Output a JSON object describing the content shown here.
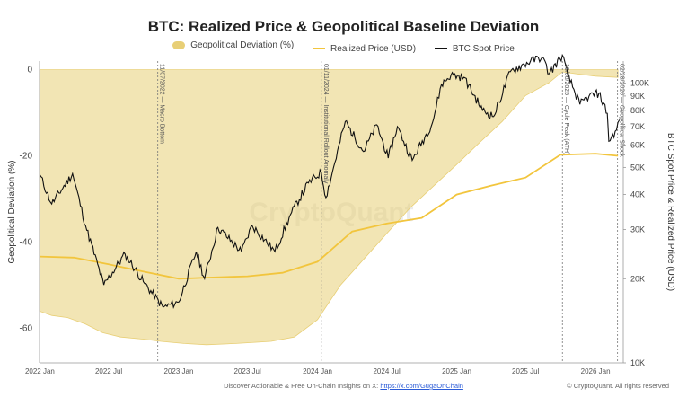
{
  "chart_data": {
    "type": "line",
    "title": "BTC: Realized Price & Geopolitical Baseline Deviation",
    "ylabel_left": "Geopolitical Deviation (%)",
    "ylabel_right": "BTC Spot Price & Realized Price (USD)",
    "ylim_left": [
      -68,
      2
    ],
    "ylim_right": [
      10000,
      120000
    ],
    "right_scale": "log",
    "legend_position": "top-center",
    "x_ticks": [
      "2022 Jan",
      "2022 Jul",
      "2023 Jan",
      "2023 Jul",
      "2024 Jan",
      "2024 Jul",
      "2025 Jan",
      "2025 Jul",
      "2026 Jan"
    ],
    "y_ticks_left": [
      0,
      -20,
      -40,
      -60
    ],
    "y_ticks_right": [
      {
        "value": 100000,
        "label": "100K"
      },
      {
        "value": 90000,
        "label": "90K"
      },
      {
        "value": 80000,
        "label": "80K"
      },
      {
        "value": 70000,
        "label": "70K"
      },
      {
        "value": 60000,
        "label": "60K"
      },
      {
        "value": 50000,
        "label": "50K"
      },
      {
        "value": 40000,
        "label": "40K"
      },
      {
        "value": 30000,
        "label": "30K"
      },
      {
        "value": 20000,
        "label": "20K"
      },
      {
        "value": 10000,
        "label": "10K"
      }
    ],
    "grid": false,
    "watermark": "CryptoQuant",
    "series": [
      {
        "name": "Geopolitical Deviation (%)",
        "type": "area",
        "color": "#e8cf76",
        "x": [
          "2021-12-31",
          "2022-02-01",
          "2022-03-15",
          "2022-05-01",
          "2022-06-15",
          "2022-08-01",
          "2022-10-01",
          "2022-11-15",
          "2023-01-15",
          "2023-03-15",
          "2023-06-01",
          "2023-09-01",
          "2023-11-01",
          "2024-01-01",
          "2024-03-01",
          "2024-05-01",
          "2024-07-01",
          "2024-09-01",
          "2024-11-01",
          "2025-01-01",
          "2025-03-01",
          "2025-05-01",
          "2025-07-01",
          "2025-09-01",
          "2025-10-06",
          "2025-11-15",
          "2026-01-01",
          "2026-03-01"
        ],
        "values": [
          -56,
          -57,
          -57.5,
          -59,
          -61,
          -62,
          -62.5,
          -63,
          -63.5,
          -63.8,
          -63.5,
          -63,
          -62,
          -58,
          -50,
          -44,
          -38,
          -32,
          -27,
          -22,
          -17,
          -12,
          -6,
          -3,
          -0.5,
          -1,
          -1.5,
          -1.8
        ]
      },
      {
        "name": "Realized Price (USD)",
        "color": "#f2c53d",
        "x": [
          "2022-01-01",
          "2022-04-01",
          "2022-07-01",
          "2022-10-01",
          "2023-01-01",
          "2023-04-01",
          "2023-07-01",
          "2023-10-01",
          "2024-01-01",
          "2024-04-01",
          "2024-07-01",
          "2024-10-01",
          "2025-01-01",
          "2025-04-01",
          "2025-07-01",
          "2025-10-01",
          "2026-01-01",
          "2026-03-01"
        ],
        "values": [
          24000,
          23800,
          22500,
          21200,
          20000,
          20200,
          20400,
          21000,
          23000,
          29500,
          31500,
          33000,
          40000,
          43000,
          46000,
          55500,
          56000,
          55000
        ]
      },
      {
        "name": "BTC Spot Price",
        "color": "#111111",
        "x": [
          "2022-01-01",
          "2022-02-01",
          "2022-03-28",
          "2022-05-01",
          "2022-06-18",
          "2022-08-13",
          "2022-09-30",
          "2022-11-21",
          "2023-01-01",
          "2023-02-16",
          "2023-03-10",
          "2023-04-14",
          "2023-06-15",
          "2023-07-13",
          "2023-09-11",
          "2023-10-25",
          "2023-12-08",
          "2024-01-11",
          "2024-01-23",
          "2024-03-14",
          "2024-05-01",
          "2024-06-05",
          "2024-07-05",
          "2024-07-29",
          "2024-09-06",
          "2024-10-29",
          "2024-11-22",
          "2024-12-17",
          "2025-01-20",
          "2025-03-10",
          "2025-04-08",
          "2025-05-22",
          "2025-07-14",
          "2025-08-14",
          "2025-09-01",
          "2025-10-06",
          "2025-10-20",
          "2025-11-21",
          "2025-12-15",
          "2026-01-10",
          "2026-02-01",
          "2026-02-05",
          "2026-02-25",
          "2026-03-05"
        ],
        "values": [
          47000,
          37000,
          47500,
          31000,
          19000,
          24500,
          19500,
          15800,
          16500,
          25000,
          20000,
          30500,
          25000,
          31000,
          25000,
          34500,
          44000,
          48000,
          39000,
          73000,
          57000,
          71000,
          54000,
          70000,
          53000,
          72000,
          99000,
          107000,
          105000,
          80000,
          76000,
          110000,
          120000,
          124000,
          108000,
          126000,
          107000,
          84000,
          90000,
          92000,
          78000,
          62000,
          68000,
          74000
        ]
      }
    ],
    "annotations": [
      {
        "date": "2022-11-07",
        "label": "11/07/2022 — Macro Bottom"
      },
      {
        "date": "2024-01-11",
        "label": "01/11/2024 — Institutional Rollout Anomaly"
      },
      {
        "date": "2025-10-06",
        "label": "10/06/2025 — Cycle Peak (ATH)"
      },
      {
        "date": "2026-02-28",
        "label": "02/28/2026 — Geopolitical Shock"
      }
    ]
  },
  "footer": {
    "text": "Discover Actionable & Free On-Chain Insights on X:",
    "link": "https://x.com/GugaOnChain",
    "credit": "© CryptoQuant. All rights reserved"
  }
}
